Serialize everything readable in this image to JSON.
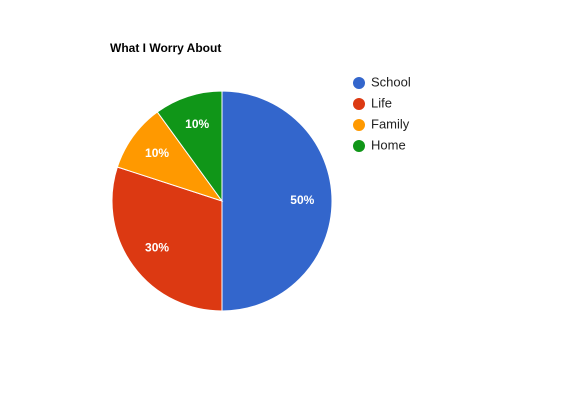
{
  "chart_data": {
    "type": "pie",
    "title": "What I Worry About",
    "categories": [
      "School",
      "Life",
      "Family",
      "Home"
    ],
    "values": [
      50,
      30,
      10,
      10
    ],
    "value_labels": [
      "50%",
      "30%",
      "10%",
      "10%"
    ],
    "colors": [
      "#3366cc",
      "#dc3912",
      "#ff9900",
      "#109618"
    ],
    "legend": "right"
  }
}
